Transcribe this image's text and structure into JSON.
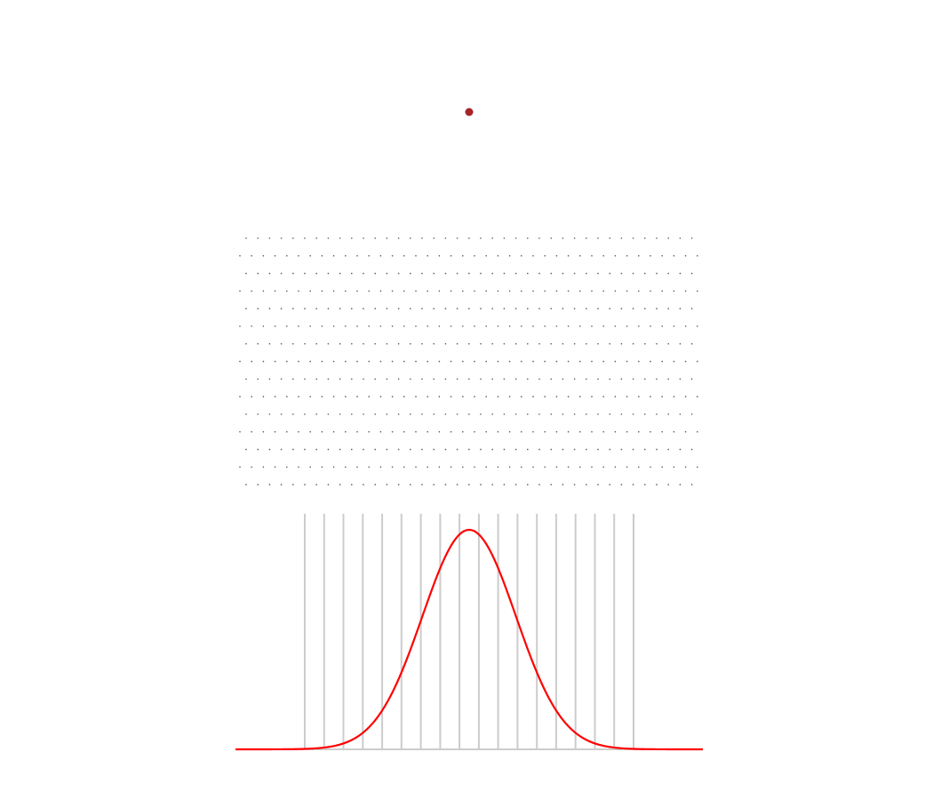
{
  "colors": {
    "background": "#ffffff",
    "source_dot": "#a3252b",
    "lattice_dot": "#555555",
    "slit_line": "#cccccc",
    "baseline": "#cccccc",
    "curve": "#ff0000"
  },
  "lattice": {
    "rows": 15,
    "columns_per_row": [
      39,
      40
    ],
    "pattern": "staggered"
  },
  "slits": {
    "count": 18
  },
  "curve": {
    "type": "gaussian",
    "mean": 0,
    "sigma": 1,
    "x_range": [
      -5,
      5
    ],
    "peak": 1
  }
}
